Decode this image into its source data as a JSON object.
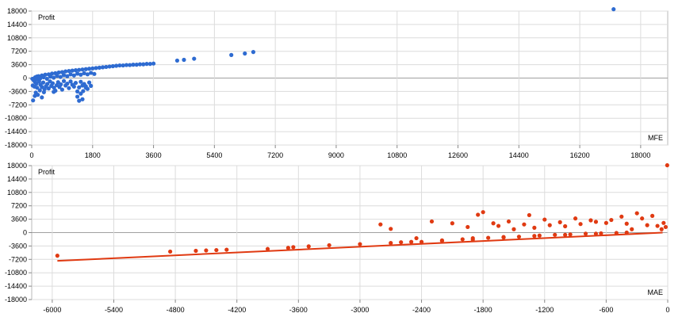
{
  "chart_data": [
    {
      "type": "scatter",
      "title": "",
      "xlabel": "MFE",
      "ylabel": "Profit",
      "xlim": [
        0,
        18800
      ],
      "ylim": [
        -18000,
        18000
      ],
      "xticks": [
        0,
        1800,
        3600,
        5400,
        7200,
        9000,
        10800,
        12600,
        14400,
        16200,
        18000
      ],
      "yticks": [
        18000,
        14400,
        10800,
        7200,
        3600,
        0,
        -3600,
        -7200,
        -10800,
        -14400,
        -18000
      ],
      "grid": true,
      "legend": "none",
      "series": [
        {
          "color": "#2e6bd1",
          "points": [
            [
              20,
              -200
            ],
            [
              60,
              -600
            ],
            [
              100,
              -1100
            ],
            [
              140,
              -1500
            ],
            [
              30,
              -2000
            ],
            [
              80,
              -2300
            ],
            [
              160,
              -2600
            ],
            [
              220,
              -900
            ],
            [
              260,
              -1800
            ],
            [
              300,
              -2400
            ],
            [
              340,
              -1200
            ],
            [
              380,
              -3000
            ],
            [
              420,
              -2200
            ],
            [
              460,
              -1600
            ],
            [
              500,
              -2800
            ],
            [
              540,
              -900
            ],
            [
              580,
              -2100
            ],
            [
              620,
              -1400
            ],
            [
              660,
              -2600
            ],
            [
              700,
              -3400
            ],
            [
              740,
              -1900
            ],
            [
              780,
              -1100
            ],
            [
              820,
              -2400
            ],
            [
              860,
              -1700
            ],
            [
              900,
              -3100
            ],
            [
              950,
              -800
            ],
            [
              1000,
              -2000
            ],
            [
              1050,
              -1500
            ],
            [
              1100,
              -2700
            ],
            [
              1150,
              -900
            ],
            [
              1200,
              -1800
            ],
            [
              1250,
              -2300
            ],
            [
              1300,
              -1300
            ],
            [
              1350,
              -3600
            ],
            [
              1400,
              -2500
            ],
            [
              1450,
              -1000
            ],
            [
              1500,
              -2000
            ],
            [
              1550,
              -1600
            ],
            [
              1600,
              -2600
            ],
            [
              1650,
              -2900
            ],
            [
              1700,
              -1200
            ],
            [
              1750,
              -2100
            ],
            [
              180,
              -4500
            ],
            [
              240,
              -3300
            ],
            [
              120,
              -3900
            ],
            [
              300,
              -5200
            ],
            [
              40,
              -6000
            ],
            [
              90,
              -4800
            ],
            [
              360,
              -3800
            ],
            [
              650,
              -3700
            ],
            [
              1450,
              -4200
            ],
            [
              1350,
              -5000
            ],
            [
              1500,
              -5700
            ],
            [
              1520,
              -3500
            ],
            [
              1400,
              -6100
            ],
            [
              1600,
              -2200
            ],
            [
              100,
              200
            ],
            [
              150,
              400
            ],
            [
              200,
              500
            ],
            [
              300,
              700
            ],
            [
              400,
              900
            ],
            [
              500,
              1000
            ],
            [
              600,
              1200
            ],
            [
              700,
              1300
            ],
            [
              800,
              1500
            ],
            [
              900,
              1600
            ],
            [
              1000,
              1800
            ],
            [
              1100,
              1900
            ],
            [
              1200,
              2000
            ],
            [
              1300,
              2100
            ],
            [
              1400,
              2200
            ],
            [
              1500,
              2300
            ],
            [
              1600,
              2400
            ],
            [
              1700,
              2500
            ],
            [
              1800,
              2600
            ],
            [
              1900,
              2700
            ],
            [
              2000,
              2800
            ],
            [
              2100,
              2900
            ],
            [
              2200,
              3000
            ],
            [
              2300,
              3100
            ],
            [
              2400,
              3200
            ],
            [
              2500,
              3300
            ],
            [
              2600,
              3400
            ],
            [
              2700,
              3400
            ],
            [
              2800,
              3500
            ],
            [
              2900,
              3500
            ],
            [
              3000,
              3600
            ],
            [
              3100,
              3600
            ],
            [
              3200,
              3700
            ],
            [
              3300,
              3700
            ],
            [
              3400,
              3800
            ],
            [
              3500,
              3800
            ],
            [
              3600,
              3900
            ],
            [
              150,
              -300
            ],
            [
              250,
              -100
            ],
            [
              350,
              200
            ],
            [
              450,
              -200
            ],
            [
              550,
              400
            ],
            [
              650,
              100
            ],
            [
              750,
              600
            ],
            [
              850,
              300
            ],
            [
              950,
              800
            ],
            [
              1050,
              500
            ],
            [
              1150,
              1000
            ],
            [
              1250,
              700
            ],
            [
              1350,
              1200
            ],
            [
              1450,
              900
            ],
            [
              1550,
              1300
            ],
            [
              1650,
              1000
            ],
            [
              1750,
              1400
            ],
            [
              1850,
              1100
            ],
            [
              4300,
              4700
            ],
            [
              4500,
              4900
            ],
            [
              4800,
              5200
            ],
            [
              5900,
              6200
            ],
            [
              6300,
              6600
            ],
            [
              6550,
              7000
            ],
            [
              17200,
              18500
            ]
          ]
        }
      ]
    },
    {
      "type": "scatter",
      "title": "",
      "xlabel": "MAE",
      "ylabel": "Profit",
      "xlim": [
        -6200,
        0
      ],
      "ylim": [
        -18000,
        18000
      ],
      "xticks": [
        -6000,
        -5400,
        -4800,
        -4200,
        -3600,
        -3000,
        -2400,
        -1800,
        -1200,
        -600,
        0
      ],
      "yticks": [
        18000,
        14400,
        10800,
        7200,
        3600,
        0,
        -3600,
        -7200,
        -10800,
        -14400,
        -18000
      ],
      "grid": true,
      "legend": "none",
      "series": [
        {
          "color": "#e03a12",
          "line": [
            [
              -5950,
              -7600
            ],
            [
              -50,
              0
            ]
          ],
          "points": [
            [
              -5950,
              -6200
            ],
            [
              -4850,
              -5100
            ],
            [
              -4600,
              -4900
            ],
            [
              -4500,
              -4800
            ],
            [
              -4400,
              -4700
            ],
            [
              -4300,
              -4600
            ],
            [
              -3900,
              -4400
            ],
            [
              -3700,
              -4100
            ],
            [
              -3650,
              -3900
            ],
            [
              -3500,
              -3700
            ],
            [
              -3300,
              -3400
            ],
            [
              -3000,
              -3100
            ],
            [
              -2700,
              -2800
            ],
            [
              -2450,
              -1500
            ],
            [
              -2400,
              -2500
            ],
            [
              -2300,
              3000
            ],
            [
              -2200,
              -2100
            ],
            [
              -2100,
              2500
            ],
            [
              -2000,
              -1800
            ],
            [
              -1950,
              1500
            ],
            [
              -1850,
              4800
            ],
            [
              -1800,
              5500
            ],
            [
              -1750,
              -1400
            ],
            [
              -1700,
              2500
            ],
            [
              -1650,
              1800
            ],
            [
              -1600,
              -1300
            ],
            [
              -1550,
              3000
            ],
            [
              -1500,
              900
            ],
            [
              -1450,
              -1100
            ],
            [
              -1400,
              2200
            ],
            [
              -1350,
              4700
            ],
            [
              -1300,
              1300
            ],
            [
              -1250,
              -800
            ],
            [
              -1200,
              3500
            ],
            [
              -1150,
              2000
            ],
            [
              -1100,
              -600
            ],
            [
              -1050,
              2800
            ],
            [
              -1000,
              1700
            ],
            [
              -950,
              -500
            ],
            [
              -900,
              3800
            ],
            [
              -850,
              2300
            ],
            [
              -800,
              -300
            ],
            [
              -750,
              3300
            ],
            [
              -700,
              2900
            ],
            [
              -650,
              -200
            ],
            [
              -600,
              2600
            ],
            [
              -550,
              3400
            ],
            [
              -500,
              -100
            ],
            [
              -450,
              4300
            ],
            [
              -400,
              2400
            ],
            [
              -350,
              900
            ],
            [
              -300,
              5200
            ],
            [
              -250,
              3800
            ],
            [
              -200,
              2000
            ],
            [
              -150,
              4500
            ],
            [
              -100,
              1800
            ],
            [
              -60,
              900
            ],
            [
              -40,
              2600
            ],
            [
              -20,
              1500
            ],
            [
              -5,
              18100
            ],
            [
              -1900,
              -1500
            ],
            [
              -1600,
              -1200
            ],
            [
              -1300,
              -900
            ],
            [
              -1000,
              -600
            ],
            [
              -700,
              -300
            ],
            [
              -400,
              0
            ],
            [
              -2600,
              -2600
            ],
            [
              -2500,
              -2500
            ],
            [
              -2200,
              -2200
            ],
            [
              -1900,
              -1900
            ],
            [
              -2800,
              2200
            ],
            [
              -2700,
              1000
            ]
          ]
        }
      ]
    }
  ]
}
